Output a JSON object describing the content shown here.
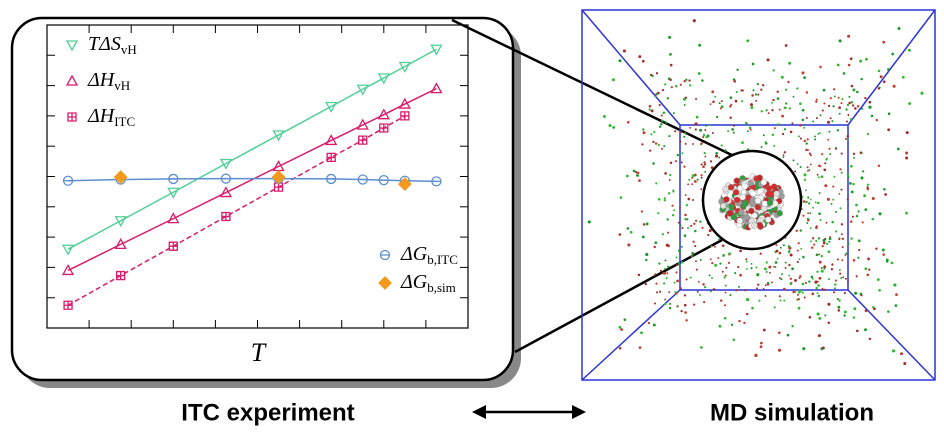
{
  "chart_data": {
    "type": "line",
    "x_label": "T",
    "xlim": [
      0,
      10
    ],
    "ylim": [
      0,
      10
    ],
    "xticks": [
      0,
      1,
      2,
      3,
      4,
      5,
      6,
      7,
      8,
      9,
      10
    ],
    "yticks": [
      0,
      1,
      2,
      3,
      4,
      5,
      6,
      7,
      8,
      9,
      10
    ],
    "x": [
      0.5,
      1.75,
      3,
      4.25,
      5.5,
      6.75,
      7.5,
      8,
      8.5,
      9.25
    ],
    "series": [
      {
        "name": "TΔS",
        "name_sub": "vH",
        "color": "#4fcf96",
        "marker": "triangle-down",
        "linestyle": "solid",
        "values": [
          2.6,
          3.54,
          4.48,
          5.43,
          6.37,
          7.31,
          7.88,
          8.25,
          8.63,
          9.2
        ]
      },
      {
        "name": "ΔH",
        "name_sub": "vH",
        "color": "#d81b6a",
        "marker": "triangle-up",
        "linestyle": "solid",
        "values": [
          1.9,
          2.76,
          3.61,
          4.47,
          5.33,
          6.19,
          6.7,
          7.04,
          7.39,
          7.9
        ]
      },
      {
        "name": "ΔH",
        "name_sub": "ITC",
        "color": "#d81b6a",
        "marker": "square",
        "linestyle": "dashed",
        "values": [
          0.75,
          1.73,
          2.7,
          3.68,
          4.65,
          5.63,
          6.2,
          6.6,
          7.0,
          null
        ]
      },
      {
        "name": "ΔG",
        "name_sub": "b,ITC",
        "color": "#5b8fd0",
        "marker": "circle",
        "linestyle": "solid",
        "values": [
          4.86,
          4.9,
          4.92,
          4.93,
          4.93,
          4.92,
          4.9,
          4.88,
          4.86,
          4.84
        ]
      },
      {
        "name": "ΔG",
        "name_sub": "b,sim",
        "color": "#f39a1e",
        "marker": "diamond",
        "linestyle": "none",
        "x": [
          1.75,
          5.5,
          8.5
        ],
        "values": [
          4.98,
          4.98,
          4.75
        ]
      }
    ]
  },
  "labels": {
    "left": "ITC experiment",
    "right": "MD simulation"
  }
}
